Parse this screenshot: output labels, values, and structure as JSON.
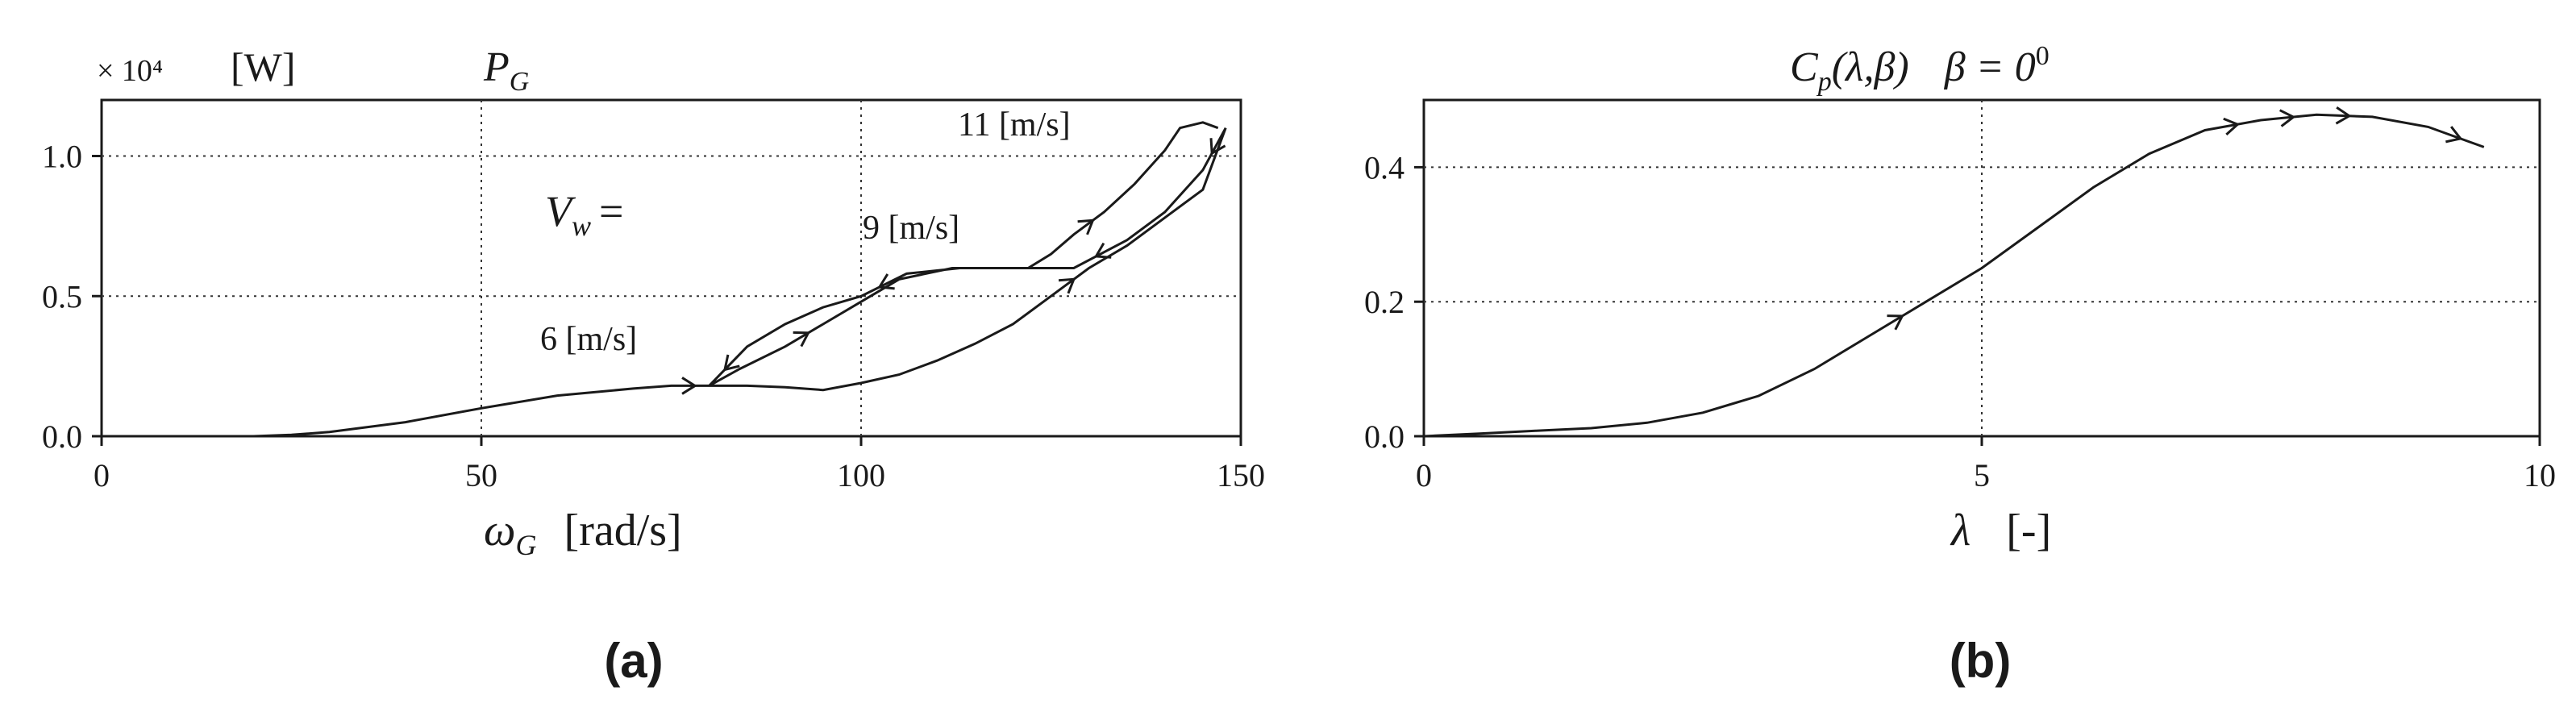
{
  "figure_labels": {
    "a": "(a)",
    "b": "(b)"
  },
  "chart_data": [
    {
      "type": "line",
      "panel": "a",
      "title": "P_G",
      "title_main": "P",
      "title_sub": "G",
      "multiplier": "× 10⁴",
      "unit": "[W]",
      "xlabel_main": "ω",
      "xlabel_sub": "G",
      "xlabel_unit": "[rad/s]",
      "xlim": [
        0,
        150
      ],
      "ylim": [
        0,
        1.2
      ],
      "xticks": [
        0,
        50,
        100,
        150
      ],
      "yticks": [
        0.0,
        0.5,
        1.0
      ],
      "xtick_labels": [
        "0",
        "50",
        "100",
        "150"
      ],
      "ytick_labels": [
        "0.0",
        "0.5",
        "1.0"
      ],
      "grid": "dotted",
      "annotations": {
        "vw_main": "V",
        "vw_sub": "w",
        "vw_eq": "=",
        "speed_6": "6 [m/s]",
        "speed_9": "9 [m/s]",
        "speed_11": "11 [m/s]"
      },
      "series": [
        {
          "x": [
            20,
            25,
            30,
            40,
            50,
            60,
            70,
            75,
            80,
            85,
            90,
            95,
            100,
            105,
            110,
            115,
            120,
            125,
            130,
            135,
            140,
            145,
            148,
            145,
            140,
            135,
            128,
            120,
            113,
            106,
            100,
            95,
            90,
            85,
            80,
            84,
            90,
            95,
            100,
            105,
            112,
            118,
            122,
            125,
            128,
            132,
            136,
            140,
            142,
            145,
            147
          ],
          "y": [
            0,
            0.005,
            0.015,
            0.05,
            0.1,
            0.145,
            0.17,
            0.18,
            0.18,
            0.18,
            0.175,
            0.165,
            0.19,
            0.22,
            0.27,
            0.33,
            0.4,
            0.5,
            0.6,
            0.68,
            0.78,
            0.88,
            1.1,
            0.95,
            0.8,
            0.7,
            0.6,
            0.6,
            0.6,
            0.58,
            0.5,
            0.46,
            0.4,
            0.32,
            0.18,
            0.24,
            0.32,
            0.4,
            0.48,
            0.56,
            0.6,
            0.6,
            0.6,
            0.65,
            0.72,
            0.8,
            0.9,
            1.02,
            1.1,
            1.12,
            1.1
          ]
        }
      ]
    },
    {
      "type": "line",
      "panel": "b",
      "title": "Cp(λ,β) β = 0⁰",
      "title_c": "C",
      "title_p": "p",
      "title_args": "(λ,β)",
      "title_beta": "β = 0",
      "title_sup": "0",
      "xlabel_main": "λ",
      "xlabel_unit": "[-]",
      "xlim": [
        0,
        10
      ],
      "ylim": [
        0,
        0.5
      ],
      "xticks": [
        0,
        5,
        10
      ],
      "yticks": [
        0.0,
        0.2,
        0.4
      ],
      "xtick_labels": [
        "0",
        "5",
        "10"
      ],
      "ytick_labels": [
        "0.0",
        "0.2",
        "0.4"
      ],
      "grid": "dotted",
      "series": [
        {
          "x": [
            0,
            0.5,
            1,
            1.5,
            2,
            2.5,
            3,
            3.5,
            4,
            4.5,
            5,
            5.5,
            6,
            6.5,
            7,
            7.5,
            8,
            8.5,
            9,
            9.5
          ],
          "y": [
            0,
            0.004,
            0.008,
            0.012,
            0.02,
            0.035,
            0.06,
            0.1,
            0.15,
            0.2,
            0.25,
            0.31,
            0.37,
            0.42,
            0.455,
            0.47,
            0.478,
            0.475,
            0.46,
            0.43
          ]
        }
      ]
    }
  ]
}
